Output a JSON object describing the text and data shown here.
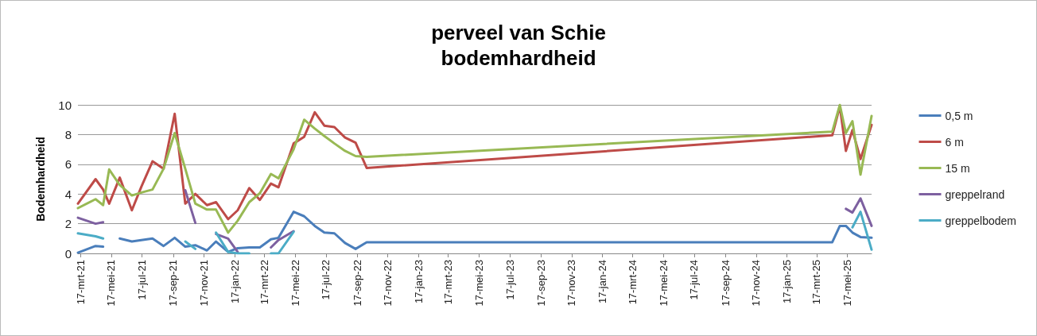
{
  "chart_data": {
    "type": "line",
    "title": "perveel van Schie",
    "subtitle": "bodemhardheid",
    "ylabel": "Bodemhardheid",
    "x": [
      "2021-03-12",
      "2021-04-16",
      "2021-05-01",
      "2021-05-13",
      "2021-06-03",
      "2021-06-27",
      "2021-07-16",
      "2021-08-07",
      "2021-08-29",
      "2021-09-20",
      "2021-10-11",
      "2021-10-31",
      "2021-11-23",
      "2021-12-11",
      "2022-01-04",
      "2022-01-23",
      "2022-02-15",
      "2022-03-08",
      "2022-03-30",
      "2022-04-14",
      "2022-05-14",
      "2022-06-04",
      "2022-06-25",
      "2022-07-14",
      "2022-08-03",
      "2022-08-24",
      "2022-09-14",
      "2022-10-06",
      "2025-04-17",
      "2025-05-02",
      "2025-05-14",
      "2025-05-27",
      "2025-06-12",
      "2025-07-04"
    ],
    "series": [
      {
        "name": "0,5 m",
        "color": "#4a7ebb",
        "values": [
          0.05,
          0.5,
          0.45,
          null,
          1.0,
          0.8,
          0.9,
          1.0,
          0.5,
          1.05,
          0.45,
          0.55,
          0.2,
          0.8,
          0.1,
          0.35,
          0.4,
          0.4,
          0.95,
          1.05,
          2.8,
          2.5,
          1.85,
          1.4,
          1.35,
          0.7,
          0.3,
          0.75,
          0.75,
          1.85,
          1.85,
          1.4,
          1.1,
          1.05
        ]
      },
      {
        "name": "6 m",
        "color": "#be4b48",
        "values": [
          3.35,
          5.0,
          4.3,
          3.35,
          5.1,
          2.9,
          4.5,
          6.2,
          5.7,
          9.4,
          3.35,
          4.0,
          3.25,
          3.45,
          2.3,
          2.9,
          4.4,
          3.6,
          4.7,
          4.45,
          7.4,
          7.85,
          9.5,
          8.6,
          8.5,
          7.8,
          7.45,
          5.75,
          7.95,
          9.9,
          6.9,
          8.3,
          6.35,
          8.65
        ]
      },
      {
        "name": "15 m",
        "color": "#98b954",
        "values": [
          3.05,
          3.65,
          3.25,
          5.65,
          4.6,
          3.9,
          4.1,
          4.3,
          5.7,
          8.1,
          5.7,
          3.35,
          2.95,
          2.95,
          1.4,
          2.2,
          3.45,
          4.05,
          5.35,
          5.05,
          7.0,
          9.0,
          8.4,
          7.9,
          7.4,
          6.9,
          6.55,
          6.5,
          8.2,
          10.0,
          8.1,
          8.9,
          5.3,
          9.25
        ]
      },
      {
        "name": "greppelrand",
        "color": "#7d60a0",
        "values": [
          2.4,
          2.0,
          2.1,
          null,
          null,
          null,
          null,
          null,
          null,
          null,
          4.25,
          2.05,
          null,
          1.3,
          1.0,
          0.1,
          null,
          null,
          0.4,
          0.9,
          1.5,
          null,
          null,
          null,
          null,
          null,
          null,
          null,
          null,
          null,
          3.0,
          2.75,
          3.7,
          1.85
        ]
      },
      {
        "name": "greppelbodem",
        "color": "#4bacc6",
        "values": [
          1.35,
          1.15,
          1.0,
          null,
          null,
          null,
          null,
          null,
          null,
          null,
          0.8,
          0.3,
          null,
          1.4,
          0.1,
          0.0,
          0.0,
          null,
          0.0,
          0.0,
          1.45,
          null,
          null,
          null,
          null,
          null,
          null,
          null,
          null,
          null,
          null,
          1.75,
          2.8,
          0.25
        ]
      }
    ],
    "xlim": [
      "2021-03-12",
      "2025-07-04"
    ],
    "xticks": [
      {
        "value": "2021-03-17",
        "label": "17-mrt-21"
      },
      {
        "value": "2021-05-17",
        "label": "17-mei-21"
      },
      {
        "value": "2021-07-17",
        "label": "17-jul-21"
      },
      {
        "value": "2021-09-17",
        "label": "17-sep-21"
      },
      {
        "value": "2021-11-17",
        "label": "17-nov-21"
      },
      {
        "value": "2022-01-17",
        "label": "17-jan-22"
      },
      {
        "value": "2022-03-17",
        "label": "17-mrt-22"
      },
      {
        "value": "2022-05-17",
        "label": "17-mei-22"
      },
      {
        "value": "2022-07-17",
        "label": "17-jul-22"
      },
      {
        "value": "2022-09-17",
        "label": "17-sep-22"
      },
      {
        "value": "2022-11-17",
        "label": "17-nov-22"
      },
      {
        "value": "2023-01-17",
        "label": "17-jan-23"
      },
      {
        "value": "2023-03-17",
        "label": "17-mrt-23"
      },
      {
        "value": "2023-05-17",
        "label": "17-mei-23"
      },
      {
        "value": "2023-07-17",
        "label": "17-jul-23"
      },
      {
        "value": "2023-09-17",
        "label": "17-sep-23"
      },
      {
        "value": "2023-11-17",
        "label": "17-nov-23"
      },
      {
        "value": "2024-01-17",
        "label": "17-jan-24"
      },
      {
        "value": "2024-03-17",
        "label": "17-mrt-24"
      },
      {
        "value": "2024-05-17",
        "label": "17-mei-24"
      },
      {
        "value": "2024-07-17",
        "label": "17-jul-24"
      },
      {
        "value": "2024-09-17",
        "label": "17-sep-24"
      },
      {
        "value": "2024-11-17",
        "label": "17-nov-24"
      },
      {
        "value": "2025-01-17",
        "label": "17-jan-25"
      },
      {
        "value": "2025-03-17",
        "label": "17-mrt-25"
      },
      {
        "value": "2025-05-17",
        "label": "17-mei-25"
      }
    ],
    "ylim": [
      0,
      10
    ],
    "yticks": [
      0,
      2,
      4,
      6,
      8,
      10
    ],
    "grid": "y",
    "legend": "right",
    "marker": "none",
    "line_style": "solid"
  }
}
